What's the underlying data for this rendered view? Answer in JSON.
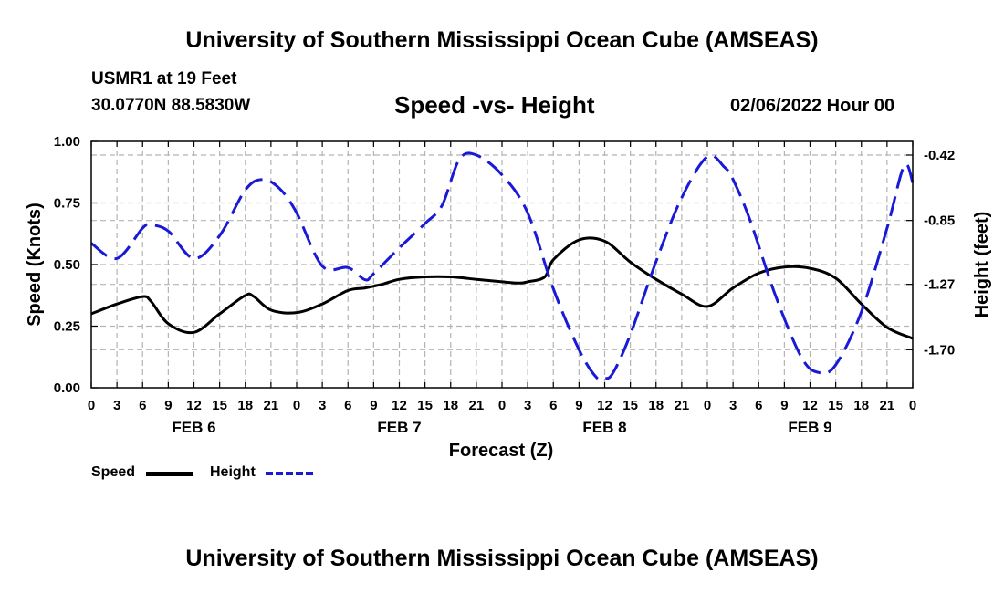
{
  "header": {
    "title": "University of Southern Mississippi Ocean Cube (AMSEAS)",
    "station": "USMR1 at 19 Feet",
    "coords": "30.0770N  88.5830W",
    "subtitle": "Speed -vs- Height",
    "date": "02/06/2022 Hour 00"
  },
  "footer": {
    "title": "University of Southern Mississippi Ocean Cube (AMSEAS)"
  },
  "legend": {
    "speed_label": "Speed",
    "height_label": "Height"
  },
  "colors": {
    "speed": "#000000",
    "height": "#1a1ad6",
    "grid": "#b4b4b4"
  },
  "chart_data": {
    "type": "line",
    "xlabel": "Forecast (Z)",
    "ylabel": "Speed (Knots)",
    "y2label": "Height (feet)",
    "xlim": [
      0,
      96
    ],
    "ylim": [
      0,
      1
    ],
    "y2lim": [
      -1.95,
      -0.33
    ],
    "x_tick_labels": [
      "0",
      "3",
      "6",
      "9",
      "12",
      "15",
      "18",
      "21",
      "0",
      "3",
      "6",
      "9",
      "12",
      "15",
      "18",
      "21",
      "0",
      "3",
      "6",
      "9",
      "12",
      "15",
      "18",
      "21",
      "0",
      "3",
      "6",
      "9",
      "12",
      "15",
      "18",
      "21",
      "0"
    ],
    "day_labels": [
      {
        "label": "FEB 6",
        "x": 12
      },
      {
        "label": "FEB 7",
        "x": 36
      },
      {
        "label": "FEB 8",
        "x": 60
      },
      {
        "label": "FEB 9",
        "x": 84
      }
    ],
    "y_ticks": [
      0,
      0.25,
      0.5,
      0.75,
      1.0
    ],
    "y_tick_labels": [
      "0.00",
      "0.25",
      "0.50",
      "0.75",
      "1.00"
    ],
    "y2_ticks": [
      -0.42,
      -0.85,
      -1.27,
      -1.7
    ],
    "y2_tick_labels": [
      "-0.42",
      "-0.85",
      "-1.27",
      "-1.70"
    ],
    "series": [
      {
        "name": "Speed",
        "axis": "left",
        "style": "solid",
        "x": [
          0,
          3,
          6,
          7,
          9,
          12,
          15,
          18,
          19,
          21,
          24,
          27,
          30,
          32,
          34,
          36,
          39,
          42,
          45,
          48,
          50,
          51,
          53,
          54,
          57,
          60,
          63,
          66,
          69,
          72,
          75,
          78,
          81,
          84,
          87,
          90,
          93,
          96
        ],
        "y": [
          0.3,
          0.34,
          0.37,
          0.35,
          0.26,
          0.225,
          0.3,
          0.375,
          0.37,
          0.315,
          0.305,
          0.34,
          0.395,
          0.405,
          0.42,
          0.44,
          0.45,
          0.45,
          0.44,
          0.43,
          0.425,
          0.43,
          0.45,
          0.52,
          0.6,
          0.595,
          0.51,
          0.44,
          0.38,
          0.33,
          0.405,
          0.465,
          0.49,
          0.485,
          0.445,
          0.34,
          0.245,
          0.2
        ]
      },
      {
        "name": "Height",
        "axis": "right",
        "style": "dashed",
        "x": [
          0,
          3,
          6,
          7,
          9,
          12,
          15,
          18,
          20,
          22,
          24,
          27,
          30,
          32,
          33,
          36,
          39,
          41,
          43,
          45,
          48,
          51,
          54,
          57,
          59,
          60,
          61,
          63,
          66,
          69,
          72,
          74,
          75,
          77,
          80,
          83,
          85,
          87,
          90,
          93,
          95,
          96
        ],
        "y": [
          -1.0,
          -1.1,
          -0.9,
          -0.88,
          -0.92,
          -1.1,
          -0.95,
          -0.65,
          -0.58,
          -0.64,
          -0.8,
          -1.15,
          -1.16,
          -1.24,
          -1.2,
          -1.03,
          -0.87,
          -0.75,
          -0.45,
          -0.42,
          -0.55,
          -0.8,
          -1.3,
          -1.7,
          -1.88,
          -1.89,
          -1.85,
          -1.6,
          -1.12,
          -0.7,
          -0.43,
          -0.5,
          -0.58,
          -0.85,
          -1.35,
          -1.75,
          -1.85,
          -1.8,
          -1.45,
          -0.9,
          -0.49,
          -0.6
        ]
      }
    ]
  }
}
